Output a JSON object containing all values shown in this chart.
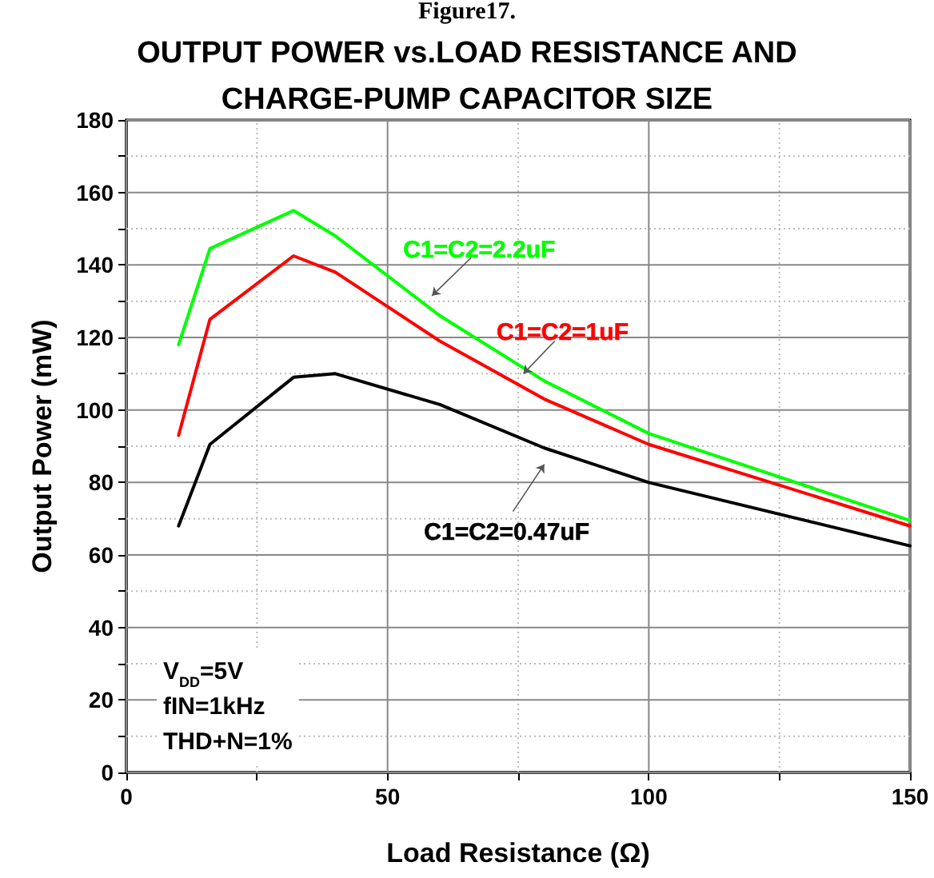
{
  "chart_data": {
    "type": "line",
    "title": "OUTPUT POWER vs.LOAD RESISTANCE AND\nCHARGE-PUMP CAPACITOR SIZE",
    "xlabel": "Load Resistance (Ω)",
    "ylabel": "Output Power (mW)",
    "annotations": [
      "Figure17.",
      "V$_{DD}$=5V\nfIN=1kHz\nTHD+N=1%"
    ],
    "x": [
      10,
      16,
      32,
      40,
      60,
      80,
      100,
      150
    ],
    "series": [
      {
        "name": "C1=C2=2.2uF",
        "color": "#00ff00",
        "values": [
          118,
          144.5,
          155,
          148,
          126,
          108,
          93.5,
          69.5
        ]
      },
      {
        "name": "C1=C2=1uF",
        "color": "#ff0000",
        "values": [
          93,
          125,
          142.5,
          138,
          119,
          103,
          90.5,
          68
        ]
      },
      {
        "name": "C1=C2=0.47uF",
        "color": "#000000",
        "values": [
          68,
          90.5,
          109,
          110,
          101.5,
          89.5,
          80,
          62.5
        ]
      }
    ],
    "xlim": [
      0,
      150
    ],
    "xticks": [
      0,
      {
        "value": 25,
        "label": null
      },
      50,
      {
        "value": 75,
        "label": null
      },
      100,
      {
        "value": 125,
        "label": null
      },
      150
    ],
    "ylim": [
      0,
      180
    ],
    "yticks": [
      0,
      {
        "value": 10,
        "label": null
      },
      20,
      {
        "value": 30,
        "label": null
      },
      40,
      {
        "value": 50,
        "label": null
      },
      60,
      {
        "value": 70,
        "label": null
      },
      80,
      {
        "value": 90,
        "label": null
      },
      100,
      {
        "value": 110,
        "label": null
      },
      120,
      {
        "value": 130,
        "label": null
      },
      140,
      {
        "value": 150,
        "label": null
      },
      160,
      {
        "value": 170,
        "label": null
      },
      180
    ],
    "grid": true,
    "legend": false,
    "marker": "none",
    "line_style": "solid"
  }
}
